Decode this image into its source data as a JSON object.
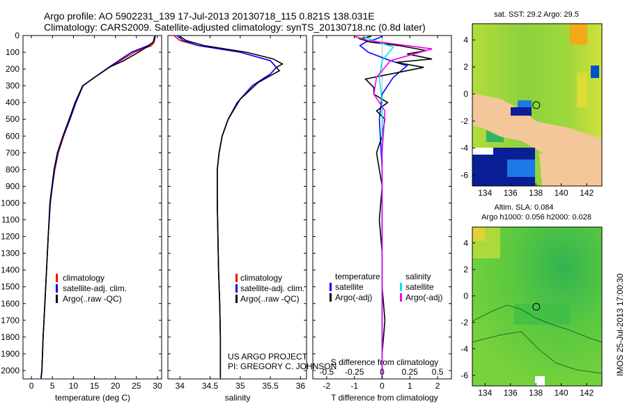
{
  "header": {
    "line1": "Argo profile: AO 5902231_139 17-Jul-2013 20130718_115 0.821S 138.031E",
    "line2": "Climatology: CARS2009. Satellite-adjusted climatology: synTS_20130718.nc (0.8d later)"
  },
  "colors": {
    "climatology": "#ff0000",
    "satellite": "#0000ff",
    "argo": "#000000",
    "sat_s": "#00e5ee",
    "argo_s": "#ee00ee",
    "land": "#f4c79a",
    "sea_high": "#ffc800",
    "sea_mid": "#32c850",
    "sea_low": "#0a1e96"
  },
  "depth_axis": {
    "ticks": [
      0,
      100,
      200,
      300,
      400,
      500,
      600,
      700,
      800,
      900,
      1000,
      1100,
      1200,
      1300,
      1400,
      1500,
      1600,
      1700,
      1800,
      1900,
      2000
    ],
    "ticks_labels": [
      "0",
      "100",
      "200",
      "300",
      "400",
      "500",
      "600",
      "700",
      "800",
      "900",
      "1000",
      "1100",
      "1200",
      "1300",
      "1400",
      "1500",
      "1600",
      "1700",
      "1800",
      "1900",
      "2000"
    ],
    "range": [
      0,
      2050
    ]
  },
  "legend_profiles": [
    "climatology",
    "satellite-adj. clim.",
    "Argo(..raw -QC)"
  ],
  "legend_diff": {
    "head_t": "temperature",
    "head_s": "salinity",
    "sat": "satellite",
    "argo": "Argo(-adj)"
  },
  "credits": {
    "line1": "US ARGO PROJECT",
    "line2": "PI: GREGORY C. JOHNSON"
  },
  "chart_data": [
    {
      "type": "line",
      "xlabel": "temperature (deg C)",
      "ylabel": "depth",
      "xlim": [
        -2,
        31
      ],
      "ylim": [
        2050,
        0
      ],
      "x_ticks": [
        0,
        5,
        10,
        15,
        20,
        25,
        30
      ],
      "x_tick_labels": [
        "0",
        "5",
        "10",
        "15",
        "20",
        "25",
        "30"
      ],
      "series": [
        {
          "name": "climatology",
          "color": "#ff0000",
          "x": [
            29.5,
            29.4,
            29.2,
            28.6,
            24.5,
            19.5,
            15.0,
            12.3,
            10.6,
            9.2,
            7.7,
            6.4,
            5.6,
            5.0,
            4.5,
            4.0,
            3.6,
            3.2,
            2.8,
            2.5,
            2.3
          ],
          "y": [
            0,
            20,
            40,
            60,
            100,
            175,
            250,
            300,
            400,
            500,
            600,
            700,
            800,
            900,
            1000,
            1200,
            1400,
            1600,
            1800,
            2000,
            2050
          ]
        },
        {
          "name": "satellite-adj. clim.",
          "color": "#0000ff",
          "x": [
            29.5,
            29.3,
            29.0,
            27.8,
            23.8,
            19.3,
            15.0,
            12.3,
            10.6,
            9.2,
            7.6,
            6.3,
            5.5,
            5.0,
            4.5,
            4.0,
            3.6,
            3.2,
            2.8,
            2.5,
            2.3
          ],
          "y": [
            0,
            20,
            40,
            60,
            100,
            175,
            250,
            300,
            400,
            500,
            600,
            700,
            800,
            900,
            1000,
            1200,
            1400,
            1600,
            1800,
            2000,
            2050
          ]
        },
        {
          "name": "Argo",
          "color": "#000000",
          "x": [
            29.3,
            29.2,
            29.0,
            28.0,
            25.5,
            22.0,
            18.5,
            14.5,
            12.2,
            10.4,
            9.0,
            7.5,
            6.2,
            5.4,
            4.9,
            4.4,
            4.0,
            3.6,
            3.2,
            2.8,
            2.5,
            2.3
          ],
          "y": [
            5,
            20,
            40,
            60,
            100,
            150,
            190,
            260,
            300,
            400,
            500,
            600,
            700,
            800,
            900,
            1000,
            1200,
            1400,
            1600,
            1800,
            2000,
            2040
          ]
        }
      ]
    },
    {
      "type": "line",
      "xlabel": "salinity",
      "ylim": [
        2050,
        0
      ],
      "xlim": [
        33.8,
        36.1
      ],
      "x_ticks": [
        34,
        34.5,
        35,
        35.5,
        36
      ],
      "x_tick_labels": [
        "34",
        "34.5",
        "35",
        "35.5",
        "36"
      ],
      "series": [
        {
          "name": "climatology",
          "color": "#ff0000",
          "x": [
            33.9,
            34.0,
            34.3,
            35.0,
            35.5,
            35.6,
            35.5,
            35.2,
            34.95,
            34.8,
            34.7,
            34.65,
            34.62,
            34.62,
            34.63,
            34.64,
            34.66,
            34.67,
            34.67
          ],
          "y": [
            0,
            30,
            60,
            100,
            150,
            190,
            230,
            300,
            400,
            500,
            600,
            700,
            800,
            1000,
            1200,
            1400,
            1600,
            1800,
            2050
          ]
        },
        {
          "name": "satellite-adj. clim.",
          "color": "#0000ff",
          "x": [
            33.95,
            34.05,
            34.3,
            35.0,
            35.5,
            35.6,
            35.5,
            35.2,
            34.95,
            34.8,
            34.7,
            34.65,
            34.62,
            34.62,
            34.63,
            34.64,
            34.66,
            34.67,
            34.67
          ],
          "y": [
            0,
            30,
            60,
            100,
            150,
            190,
            230,
            300,
            400,
            500,
            600,
            700,
            800,
            1000,
            1200,
            1400,
            1600,
            1800,
            2050
          ]
        },
        {
          "name": "Argo",
          "color": "#000000",
          "x": [
            34.0,
            34.1,
            34.4,
            35.1,
            35.55,
            35.7,
            35.6,
            35.65,
            35.3,
            35.0,
            34.8,
            34.7,
            34.65,
            34.62,
            34.62,
            34.63,
            34.64,
            34.66,
            34.67,
            34.67
          ],
          "y": [
            5,
            30,
            60,
            100,
            140,
            170,
            190,
            210,
            280,
            380,
            500,
            600,
            700,
            800,
            1000,
            1200,
            1400,
            1600,
            1800,
            2040
          ]
        }
      ]
    },
    {
      "type": "line",
      "xlabel": "T difference from climatology",
      "xlabel2": "S difference from climatology",
      "ylim": [
        2050,
        0
      ],
      "xlim": [
        -2.5,
        2.5
      ],
      "x_ticks": [
        -2,
        -1,
        0,
        1,
        2
      ],
      "x_tick_labels": [
        "-2",
        "-1",
        "0",
        "1",
        "2"
      ],
      "s_ticks": [
        -0.5,
        -0.25,
        0,
        0.25,
        0.5
      ],
      "s_tick_labels": [
        "-0.5",
        "-0.25",
        "0",
        "0.25",
        "0.5"
      ],
      "series": [
        {
          "name": "T satellite",
          "color": "#0000ff",
          "x": [
            0.0,
            -0.2,
            -0.6,
            -0.8,
            -0.5,
            0.3,
            0.9,
            0.4,
            0.0,
            -0.1,
            0.0,
            0.0,
            0.0,
            0.0
          ],
          "y": [
            5,
            20,
            40,
            60,
            100,
            150,
            180,
            250,
            350,
            500,
            800,
            1200,
            1600,
            2050
          ]
        },
        {
          "name": "T Argo",
          "color": "#000000",
          "x": [
            -0.4,
            -0.8,
            -0.4,
            0.6,
            1.6,
            0.9,
            1.8,
            0.5,
            1.5,
            -0.6,
            -0.3,
            -0.3,
            0.2,
            -0.2,
            0.1,
            0.0,
            -0.2,
            0.0,
            -0.1,
            0.0,
            0.0,
            0.1,
            0.0,
            0.0
          ],
          "y": [
            5,
            20,
            40,
            60,
            90,
            110,
            140,
            160,
            190,
            260,
            310,
            350,
            400,
            450,
            500,
            600,
            700,
            900,
            1100,
            1300,
            1500,
            1700,
            1900,
            2040
          ]
        },
        {
          "name": "S satellite",
          "color": "#00e5ee",
          "x": [
            -0.7,
            -0.3,
            0.4,
            0.0,
            -0.1,
            0.0,
            0.0,
            0.0,
            0.0
          ],
          "y": [
            5,
            30,
            70,
            150,
            250,
            400,
            800,
            1400,
            2050
          ]
        },
        {
          "name": "S Argo",
          "color": "#ee00ee",
          "x": [
            -1.0,
            -0.5,
            1.8,
            0.3,
            -0.2,
            -0.3,
            0.1,
            0.0,
            0.0,
            0.0,
            0.0
          ],
          "y": [
            5,
            30,
            80,
            150,
            250,
            350,
            450,
            700,
            1100,
            1600,
            2040
          ]
        }
      ]
    },
    {
      "type": "heatmap",
      "title": "sat. SST: 29.2 Argo: 29.5",
      "xlim": [
        133,
        143.2
      ],
      "ylim": [
        -6.8,
        5.2
      ],
      "x_ticks": [
        134,
        136,
        138,
        140,
        142
      ],
      "x_tick_labels": [
        "134",
        "136",
        "138",
        "140",
        "142"
      ],
      "y_ticks": [
        4,
        2,
        0,
        -2,
        -4,
        -6
      ],
      "y_tick_labels": [
        "4",
        "2",
        "0",
        "-2",
        "-4",
        "-6"
      ],
      "float_position": [
        138.031,
        -0.821
      ]
    },
    {
      "type": "heatmap",
      "title": "Altim. SLA: 0.084",
      "subtitle": "Argo h1000: 0.056 h2000: 0.028",
      "side_label": "IMOS 25-Jul-2013 17:00:30",
      "xlim": [
        133,
        143.2
      ],
      "ylim": [
        -6.8,
        5.2
      ],
      "x_ticks": [
        134,
        136,
        138,
        140,
        142
      ],
      "x_tick_labels": [
        "134",
        "136",
        "138",
        "140",
        "142"
      ],
      "y_ticks": [
        4,
        2,
        0,
        -2,
        -4,
        -6
      ],
      "y_tick_labels": [
        "4",
        "2",
        "0",
        "-2",
        "-4",
        "-6"
      ],
      "float_position": [
        138.031,
        -0.821
      ]
    }
  ]
}
